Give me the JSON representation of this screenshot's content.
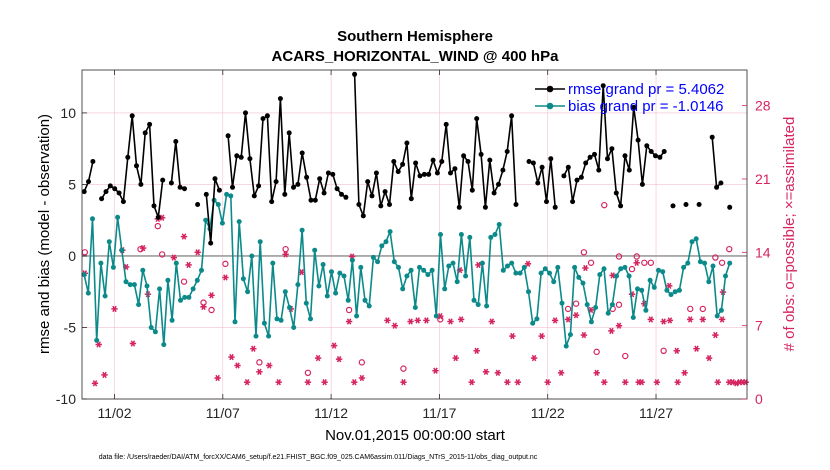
{
  "figure": {
    "title_line1": "Southern Hemisphere",
    "title_line2": "ACARS_HORIZONTAL_WIND @ 400 hPa",
    "footer": "data file: /Users/raeder/DAI/ATM_forcXX/CAM6_setup/f.e21.FHIST_BGC.f09_025.CAM6assim.011/Diags_NTrS_2015-11/obs_diag_output.nc"
  },
  "chart_data": {
    "type": "line",
    "xlabel": "Nov.01,2015 00:00:00 start",
    "ylabel_left": "rmse and bias (model - observation)",
    "ylabel_right": "# of obs: o=possible; ×=assimilated",
    "x_range": [
      0.5,
      31.2
    ],
    "ylim_left": [
      -10,
      13
    ],
    "ylim_right": [
      0,
      31.4
    ],
    "x_ticks": [
      2,
      7,
      12,
      17,
      22,
      27
    ],
    "x_tick_labels": [
      "11/02",
      "11/07",
      "11/12",
      "11/17",
      "11/22",
      "11/27"
    ],
    "y_ticks_left": [
      -10,
      -5,
      0,
      5,
      10
    ],
    "y_ticks_right": [
      0,
      7,
      14,
      21,
      28
    ],
    "zero_line": 0,
    "colors": {
      "rmse": "#000000",
      "bias": "#0c8a8a",
      "obs": "#d6245f",
      "axis_right": "#d6245f",
      "legend_text": "#0000ff",
      "zero_line": "#aaaaaa"
    },
    "series": [
      {
        "name": "rmse",
        "legend": "rmse grand pr = 5.4062",
        "values": [
          4.5,
          5.2,
          6.6,
          null,
          4.0,
          4.5,
          4.9,
          4.7,
          4.4,
          3.8,
          6.9,
          9.8,
          6.3,
          5.0,
          8.6,
          9.2,
          3.5,
          2.7,
          5.3,
          null,
          5.1,
          8.0,
          4.8,
          4.7,
          null,
          null,
          3.6,
          null,
          4.3,
          0.9,
          5.4,
          4.6,
          null,
          8.4,
          4.8,
          7.0,
          6.9,
          10.0,
          6.8,
          4.2,
          4.9,
          9.6,
          9.8,
          3.8,
          5.2,
          11.0,
          4.3,
          8.6,
          4.8,
          5.0,
          7.2,
          5.5,
          3.9,
          3.9,
          5.4,
          4.4,
          5.8,
          5.7,
          4.7,
          4.3,
          4.1,
          null,
          12.7,
          3.6,
          2.8,
          5.2,
          4.2,
          5.8,
          3.5,
          4.5,
          3.6,
          6.6,
          5.9,
          6.4,
          7.9,
          4.0,
          6.5,
          5.6,
          5.7,
          5.7,
          6.7,
          5.8,
          6.6,
          9.2,
          5.8,
          6.1,
          3.4,
          7.0,
          6.6,
          4.6,
          9.6,
          7.1,
          3.4,
          6.7,
          4.4,
          5.0,
          6.0,
          7.3,
          9.8,
          3.6,
          null,
          null,
          6.6,
          6.5,
          5.1,
          6.2,
          3.8,
          6.8,
          3.4,
          null,
          5.6,
          6.2,
          3.8,
          5.3,
          5.5,
          6.5,
          6.9,
          7.1,
          6.0,
          11.9,
          6.8,
          7.5,
          4.4,
          3.5,
          7.0,
          6.0,
          10.4,
          8.1,
          5.0,
          7.7,
          7.3,
          7.0,
          6.9,
          7.3,
          null,
          3.5,
          null,
          null,
          3.6,
          null,
          null,
          3.6,
          null,
          null,
          8.3,
          4.8,
          5.1,
          null,
          3.4
        ]
      },
      {
        "name": "bias",
        "legend": "bias grand pr = -1.0146",
        "values": [
          -1.3,
          -2.6,
          2.6,
          -5.9,
          -0.5,
          -2.8,
          1.0,
          -0.8,
          2.7,
          0.4,
          -1.8,
          -2.0,
          -2.0,
          -3.4,
          -1.0,
          -2.1,
          -5.0,
          -5.3,
          -2.3,
          -6.2,
          -1.7,
          -4.5,
          -0.5,
          -3.1,
          -2.9,
          -2.9,
          -2.3,
          -1.7,
          -1.0,
          2.5,
          1.9,
          3.9,
          3.6,
          2.3,
          4.3,
          4.2,
          -4.6,
          2.4,
          -1.6,
          -2.5,
          0.0,
          -5.6,
          1.0,
          -4.7,
          -5.6,
          -0.5,
          -4.4,
          -4.5,
          -2.5,
          -3.6,
          -5.0,
          -2.0,
          1.8,
          -3.3,
          -4.4,
          0.4,
          -2.1,
          -0.6,
          -2.8,
          -1.1,
          -2.6,
          -1.2,
          -1.4,
          -3.1,
          -0.3,
          -4.2,
          -0.8,
          -3.1,
          -3.5,
          -0.1,
          -0.4,
          0.7,
          1.0,
          1.7,
          -0.4,
          -0.8,
          -2.3,
          -1.4,
          -1.0,
          -3.6,
          -0.8,
          -1.0,
          -1.3,
          -1.0,
          -4.2,
          1.5,
          -2.3,
          -0.7,
          -0.5,
          -1.8,
          1.5,
          -1.4,
          1.3,
          -3.1,
          -3.4,
          -0.5,
          -3.5,
          1.3,
          1.5,
          2.2,
          -1.0,
          -0.7,
          -0.5,
          -1.2,
          -1.2,
          -0.8,
          -2.5,
          -4.7,
          -4.4,
          -1.2,
          -0.9,
          -1.2,
          -1.8,
          -0.8,
          -3.3,
          -6.3,
          -5.5,
          -0.8,
          -1.5,
          -1.9,
          -3.4,
          -4.6,
          -3.6,
          -1.3,
          -0.9,
          -4.0,
          -3.4,
          -1.4,
          -0.9,
          -0.8,
          -1.4,
          -4.3,
          -2.3,
          -2.4,
          -3.8,
          -1.7,
          -2.2,
          -1.0,
          -1.1,
          -2.4,
          -2.7,
          -2.5,
          -2.4,
          -0.8,
          -0.5,
          1.0,
          1.2,
          -0.4,
          -0.5,
          -1.8,
          -0.7,
          -4.2,
          -3.8,
          -1.4,
          -0.5
        ]
      }
    ],
    "obs_assimilated": [
      {
        "x": 0.63,
        "y": 12.0
      },
      {
        "x": 1.1,
        "y": 1.5
      },
      {
        "x": 1.27,
        "y": 5.2
      },
      {
        "x": 1.54,
        "y": 2.3
      },
      {
        "x": 2.0,
        "y": 8.6
      },
      {
        "x": 2.36,
        "y": 14.2
      },
      {
        "x": 2.54,
        "y": 12.6
      },
      {
        "x": 2.85,
        "y": 5.3
      },
      {
        "x": 3.32,
        "y": 14.4
      },
      {
        "x": 3.54,
        "y": 10.0
      },
      {
        "x": 4.0,
        "y": 17.2
      },
      {
        "x": 4.2,
        "y": 17.3
      },
      {
        "x": 4.74,
        "y": 13.5
      },
      {
        "x": 5.21,
        "y": 15.5
      },
      {
        "x": 5.42,
        "y": 12.8
      },
      {
        "x": 5.84,
        "y": 14.0
      },
      {
        "x": 6.11,
        "y": 8.8
      },
      {
        "x": 6.48,
        "y": 9.9
      },
      {
        "x": 6.76,
        "y": 2.0
      },
      {
        "x": 7.12,
        "y": 11.6
      },
      {
        "x": 7.4,
        "y": 4.0
      },
      {
        "x": 7.68,
        "y": 3.2
      },
      {
        "x": 8.12,
        "y": 1.6
      },
      {
        "x": 8.41,
        "y": 4.8
      },
      {
        "x": 8.69,
        "y": 2.6
      },
      {
        "x": 9.14,
        "y": 3.2
      },
      {
        "x": 9.58,
        "y": 1.6
      },
      {
        "x": 10.14,
        "y": 8.6
      },
      {
        "x": 10.64,
        "y": 12.1
      },
      {
        "x": 10.93,
        "y": 1.6
      },
      {
        "x": 11.4,
        "y": 3.9
      },
      {
        "x": 11.7,
        "y": 1.6
      },
      {
        "x": 12.14,
        "y": 5.1
      },
      {
        "x": 12.37,
        "y": 3.8
      },
      {
        "x": 12.83,
        "y": 7.4
      },
      {
        "x": 13.07,
        "y": 1.6
      },
      {
        "x": 13.42,
        "y": 2.0
      },
      {
        "x": 14.6,
        "y": 7.5
      },
      {
        "x": 14.94,
        "y": 7.0
      },
      {
        "x": 15.34,
        "y": 1.6
      },
      {
        "x": 15.67,
        "y": 7.4
      },
      {
        "x": 16.0,
        "y": 7.5
      },
      {
        "x": 16.4,
        "y": 7.5
      },
      {
        "x": 16.82,
        "y": 2.7
      },
      {
        "x": 17.04,
        "y": 7.9
      },
      {
        "x": 17.51,
        "y": 7.4
      },
      {
        "x": 17.75,
        "y": 3.9
      },
      {
        "x": 18.0,
        "y": 7.6
      },
      {
        "x": 18.49,
        "y": 1.6
      },
      {
        "x": 18.72,
        "y": 4.6
      },
      {
        "x": 19.15,
        "y": 2.6
      },
      {
        "x": 19.42,
        "y": 7.4
      },
      {
        "x": 19.7,
        "y": 2.5
      },
      {
        "x": 20.14,
        "y": 1.6
      },
      {
        "x": 20.37,
        "y": 6.0
      },
      {
        "x": 20.62,
        "y": 1.6
      },
      {
        "x": 21.09,
        "y": 12.9
      },
      {
        "x": 21.37,
        "y": 3.9
      },
      {
        "x": 21.72,
        "y": 6.0
      },
      {
        "x": 22.0,
        "y": 1.6
      },
      {
        "x": 22.34,
        "y": 7.5
      },
      {
        "x": 22.62,
        "y": 2.5
      },
      {
        "x": 22.94,
        "y": 7.6
      },
      {
        "x": 23.31,
        "y": 8.0
      },
      {
        "x": 23.67,
        "y": 6.1
      },
      {
        "x": 24.0,
        "y": 8.5
      },
      {
        "x": 24.26,
        "y": 2.5
      },
      {
        "x": 24.61,
        "y": 1.6
      },
      {
        "x": 24.94,
        "y": 6.5
      },
      {
        "x": 25.29,
        "y": 7.0
      },
      {
        "x": 25.58,
        "y": 1.6
      },
      {
        "x": 25.89,
        "y": 10.0
      },
      {
        "x": 26.2,
        "y": 1.6
      },
      {
        "x": 26.46,
        "y": 9.1
      },
      {
        "x": 26.76,
        "y": 7.6
      },
      {
        "x": 27.04,
        "y": 1.6
      },
      {
        "x": 27.35,
        "y": 7.4
      },
      {
        "x": 27.64,
        "y": 7.5
      },
      {
        "x": 27.96,
        "y": 4.6
      },
      {
        "x": 28.32,
        "y": 2.5
      },
      {
        "x": 28.58,
        "y": 7.6
      },
      {
        "x": 28.87,
        "y": 4.8
      },
      {
        "x": 29.16,
        "y": 7.6
      },
      {
        "x": 29.45,
        "y": 3.9
      },
      {
        "x": 29.74,
        "y": 6.1
      },
      {
        "x": 30.05,
        "y": 7.6
      },
      {
        "x": 30.38,
        "y": 1.6
      },
      {
        "x": 30.71,
        "y": 1.5
      },
      {
        "x": 31.0,
        "y": 1.6
      },
      {
        "x": 31.14,
        "y": 1.6
      },
      {
        "x": 9.9,
        "y": 13.8
      },
      {
        "x": 12.97,
        "y": 13.6
      },
      {
        "x": 17.95,
        "y": 12.3
      },
      {
        "x": 18.8,
        "y": 12.8
      },
      {
        "x": 23.74,
        "y": 12.5
      },
      {
        "x": 25.0,
        "y": 11.8
      },
      {
        "x": 26.11,
        "y": 13.0
      },
      {
        "x": 26.34,
        "y": 1.6
      },
      {
        "x": 27.61,
        "y": 10.8
      },
      {
        "x": 28.0,
        "y": 1.6
      },
      {
        "x": 30.09,
        "y": 10.2
      },
      {
        "x": 30.53,
        "y": 1.6
      },
      {
        "x": 30.86,
        "y": 1.6
      },
      {
        "x": 29.85,
        "y": 1.6
      }
    ],
    "obs_possible": [
      {
        "x": 0.63,
        "y": 14.0
      },
      {
        "x": 3.2,
        "y": 14.3
      },
      {
        "x": 4.0,
        "y": 16.5
      },
      {
        "x": 4.2,
        "y": 13.8
      },
      {
        "x": 5.21,
        "y": 11.2
      },
      {
        "x": 6.48,
        "y": 8.5
      },
      {
        "x": 7.12,
        "y": 12.9
      },
      {
        "x": 8.69,
        "y": 3.5
      },
      {
        "x": 9.9,
        "y": 14.3
      },
      {
        "x": 10.93,
        "y": 2.5
      },
      {
        "x": 12.83,
        "y": 8.5
      },
      {
        "x": 13.42,
        "y": 3.5
      },
      {
        "x": 15.34,
        "y": 2.9
      },
      {
        "x": 17.04,
        "y": 7.6
      },
      {
        "x": 22.94,
        "y": 8.6
      },
      {
        "x": 23.31,
        "y": 9.1
      },
      {
        "x": 23.67,
        "y": 14.0
      },
      {
        "x": 24.0,
        "y": 13.0
      },
      {
        "x": 24.61,
        "y": 18.5
      },
      {
        "x": 25.0,
        "y": 8.6
      },
      {
        "x": 25.29,
        "y": 9.0
      },
      {
        "x": 25.89,
        "y": 12.4
      },
      {
        "x": 26.11,
        "y": 13.6
      },
      {
        "x": 26.76,
        "y": 13.0
      },
      {
        "x": 27.35,
        "y": 4.6
      },
      {
        "x": 28.58,
        "y": 8.6
      },
      {
        "x": 29.16,
        "y": 8.6
      },
      {
        "x": 29.74,
        "y": 13.5
      },
      {
        "x": 30.05,
        "y": 13.0
      },
      {
        "x": 30.38,
        "y": 14.3
      },
      {
        "x": 25.58,
        "y": 4.1
      },
      {
        "x": 24.26,
        "y": 4.5
      },
      {
        "x": 25.29,
        "y": 13.6
      },
      {
        "x": 26.46,
        "y": 13.0
      },
      {
        "x": 6.11,
        "y": 9.2
      }
    ]
  }
}
